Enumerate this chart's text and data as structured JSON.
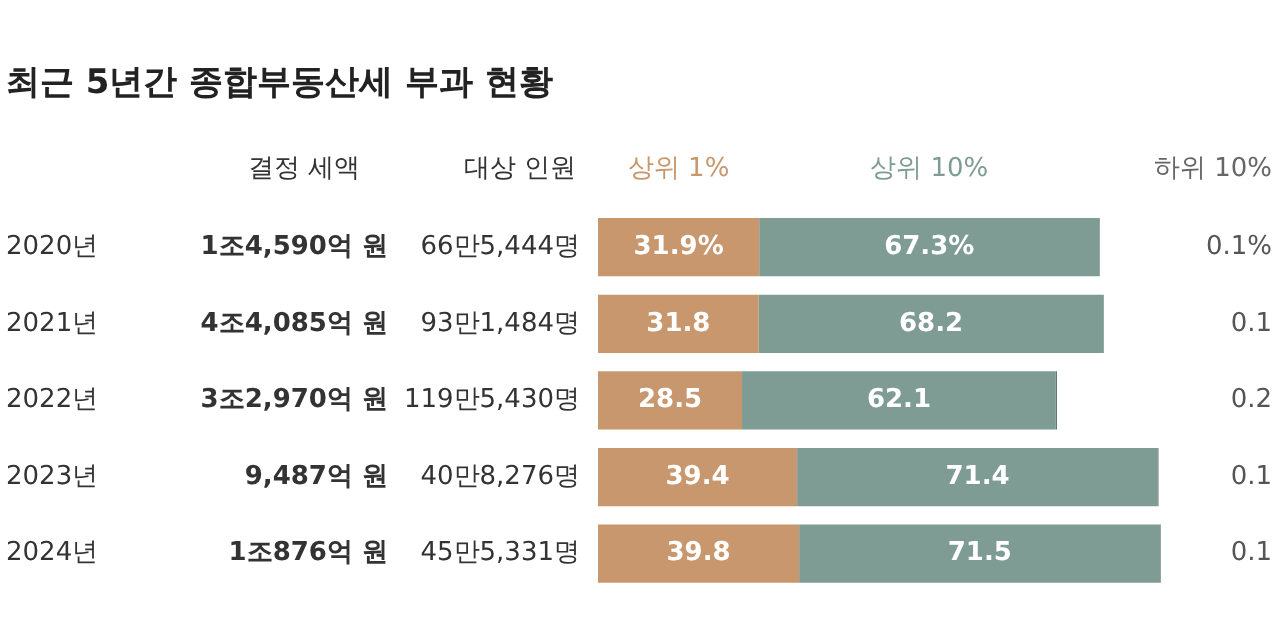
{
  "chart_data": {
    "type": "bar",
    "orientation": "horizontal",
    "stacked": true,
    "title": "최근 5년간 종합부동산세 부과 현황",
    "categories": [
      "2020년",
      "2021년",
      "2022년",
      "2023년",
      "2024년"
    ],
    "series": [
      {
        "name": "상위 1%",
        "color": "#c8976e",
        "values": [
          31.9,
          31.8,
          28.5,
          39.4,
          39.8
        ],
        "value_labels": [
          "31.9%",
          "31.8",
          "28.5",
          "39.4",
          "39.8"
        ]
      },
      {
        "name": "상위 10%",
        "color": "#7f9c94",
        "values": [
          67.3,
          68.2,
          62.1,
          71.4,
          71.5
        ],
        "value_labels": [
          "67.3%",
          "68.2",
          "62.1",
          "71.4",
          "71.5"
        ]
      },
      {
        "name": "하위 10%",
        "color": "#4f5f5a",
        "values": [
          0.1,
          0.1,
          0.2,
          0.1,
          0.1
        ],
        "value_labels": [
          "0.1%",
          "0.1",
          "0.2",
          "0.1",
          "0.1"
        ]
      }
    ],
    "xlim": [
      0,
      112
    ],
    "tick_labels": "y",
    "grid": false,
    "annotations": [
      "결정 세액",
      "대상 인원",
      "1조4,590억 원",
      "66만5,444명",
      "4조4,085억 원",
      "93만1,484명",
      "3조2,970억 원",
      "119만5,430명",
      "9,487억 원",
      "40만8,276명",
      "1조876억 원",
      "45만5,331명"
    ]
  }
}
